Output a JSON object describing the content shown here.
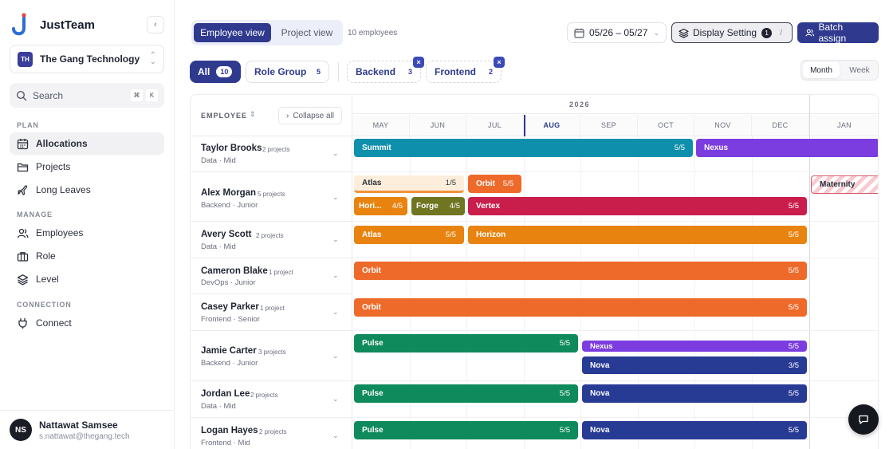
{
  "app": {
    "name": "JustTeam",
    "org_initials": "TH",
    "org_name": "The Gang Technology",
    "search_placeholder": "Search",
    "search_keys": [
      "⌘",
      "K"
    ]
  },
  "sidebar": {
    "sections": [
      {
        "label": "PLAN",
        "items": [
          {
            "label": "Allocations",
            "icon": "calendar-icon",
            "active": true
          },
          {
            "label": "Projects",
            "icon": "folder-icon",
            "active": false
          },
          {
            "label": "Long Leaves",
            "icon": "plane-icon",
            "active": false
          }
        ]
      },
      {
        "label": "MANAGE",
        "items": [
          {
            "label": "Employees",
            "icon": "users-icon",
            "active": false
          },
          {
            "label": "Role",
            "icon": "briefcase-icon",
            "active": false
          },
          {
            "label": "Level",
            "icon": "layers-icon",
            "active": false
          }
        ]
      },
      {
        "label": "CONNECTION",
        "items": [
          {
            "label": "Connect",
            "icon": "plug-icon",
            "active": false
          }
        ]
      }
    ]
  },
  "user": {
    "initials": "NS",
    "name": "Nattawat Samsee",
    "email": "s.nattawat@thegang.tech"
  },
  "toolbar": {
    "view_employee": "Employee view",
    "view_project": "Project view",
    "employee_count": "10 employees",
    "date_range": "05/26 – 05/27",
    "display_setting": "Display Setting",
    "display_badge": "1",
    "display_shortcut": "/",
    "batch_assign": "Batch assign"
  },
  "filters": {
    "all": {
      "label": "All",
      "count": "10"
    },
    "role_group": {
      "label": "Role Group",
      "count": "5"
    },
    "backend": {
      "label": "Backend",
      "count": "3",
      "remove": "×"
    },
    "frontend": {
      "label": "Frontend",
      "count": "2",
      "remove": "×"
    },
    "scale_month": "Month",
    "scale_week": "Week"
  },
  "timeline": {
    "employee_header": "EMPLOYEE",
    "sort": "⇕",
    "collapse_all": "Collapse all",
    "year": "2026",
    "current_month": "AUG",
    "months": [
      "MAY",
      "JUN",
      "JUL",
      "AUG",
      "SEP",
      "OCT",
      "NOV",
      "DEC",
      "JAN"
    ]
  },
  "employees": [
    {
      "name": "Taylor Brooks",
      "projects": "2 projects",
      "role": "Data · Mid"
    },
    {
      "name": "Alex Morgan",
      "projects": "5 projects",
      "role": "Backend · Junior"
    },
    {
      "name": "Avery Scott",
      "projects": "2 projects",
      "role": "Data · Mid"
    },
    {
      "name": "Cameron Blake",
      "projects": "1 project",
      "role": "DevOps · Junior"
    },
    {
      "name": "Casey Parker",
      "projects": "1 project",
      "role": "Frontend · Senior"
    },
    {
      "name": "Jamie Carter",
      "projects": "3 projects",
      "role": "Backend · Junior"
    },
    {
      "name": "Jordan Lee",
      "projects": "2 projects",
      "role": "Data · Mid"
    },
    {
      "name": "Logan Hayes",
      "projects": "2 projects",
      "role": "Frontend · Mid"
    }
  ],
  "bars": {
    "taylor_summit": {
      "label": "Summit",
      "load": "5/5"
    },
    "taylor_nexus": {
      "label": "Nexus",
      "load": ""
    },
    "alex_atlas": {
      "label": "Atlas",
      "load": "1/5"
    },
    "alex_orbit": {
      "label": "Orbit",
      "load": "5/5"
    },
    "alex_maternity": {
      "label": "Maternity",
      "load": ""
    },
    "alex_horizon": {
      "label": "Hori...",
      "load": "4/5"
    },
    "alex_forge": {
      "label": "Forge",
      "load": "4/5"
    },
    "alex_vertex": {
      "label": "Vertex",
      "load": "5/5"
    },
    "avery_atlas": {
      "label": "Atlas",
      "load": "5/5"
    },
    "avery_horizon": {
      "label": "Horizon",
      "load": "5/5"
    },
    "cameron_orbit": {
      "label": "Orbit",
      "load": "5/5"
    },
    "casey_orbit": {
      "label": "Orbit",
      "load": "5/5"
    },
    "jamie_pulse": {
      "label": "Pulse",
      "load": "5/5"
    },
    "jamie_nexus": {
      "label": "Nexus",
      "load": "5/5"
    },
    "jamie_nova": {
      "label": "Nova",
      "load": "3/5"
    },
    "jordan_pulse": {
      "label": "Pulse",
      "load": "5/5"
    },
    "jordan_nova": {
      "label": "Nova",
      "load": "5/5"
    },
    "logan_pulse": {
      "label": "Pulse",
      "load": "5/5"
    },
    "logan_nova": {
      "label": "Nova",
      "load": "5/5"
    }
  },
  "colors": {
    "brand": "#2f3a8f",
    "teal": "#0e8fab",
    "purple": "#7b3de0",
    "orange": "#ee6a2a",
    "amber": "#e8830f",
    "crimson": "#c91d4c",
    "olive": "#6f7520",
    "green": "#0f8a5d",
    "navy": "#273a94"
  },
  "chat_icon": "chat-bubble-icon"
}
